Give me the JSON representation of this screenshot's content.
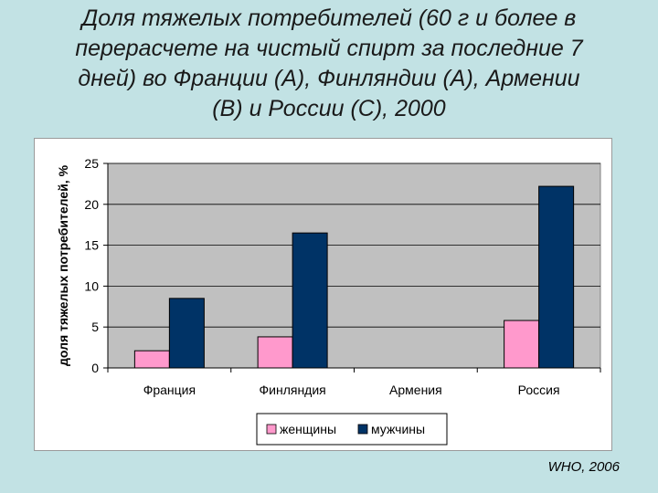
{
  "slide": {
    "title_lines": [
      "Доля тяжелых потребителей (60 г и более в",
      "перерасчете на чистый спирт за последние 7",
      "дней) во Франции (А), Финляндии (А), Армении",
      "(В) и России (С), 2000"
    ],
    "source": "WHO, 2006"
  },
  "chart_data": {
    "type": "bar",
    "categories": [
      "Франция",
      "Финляндия",
      "Армения",
      "Россия"
    ],
    "series": [
      {
        "name": "женщины",
        "values": [
          2.1,
          3.8,
          null,
          5.8
        ],
        "color": "#ff99cc"
      },
      {
        "name": "мужчины",
        "values": [
          8.5,
          16.5,
          null,
          22.2
        ],
        "color": "#003366"
      }
    ],
    "ylabel": "доля тяжелых потребителей, %",
    "ylim": [
      0,
      25
    ],
    "yticks": [
      0,
      5,
      10,
      15,
      20,
      25
    ],
    "grid": true,
    "legend": "bottom",
    "plot_background": "#c0c0c0"
  }
}
